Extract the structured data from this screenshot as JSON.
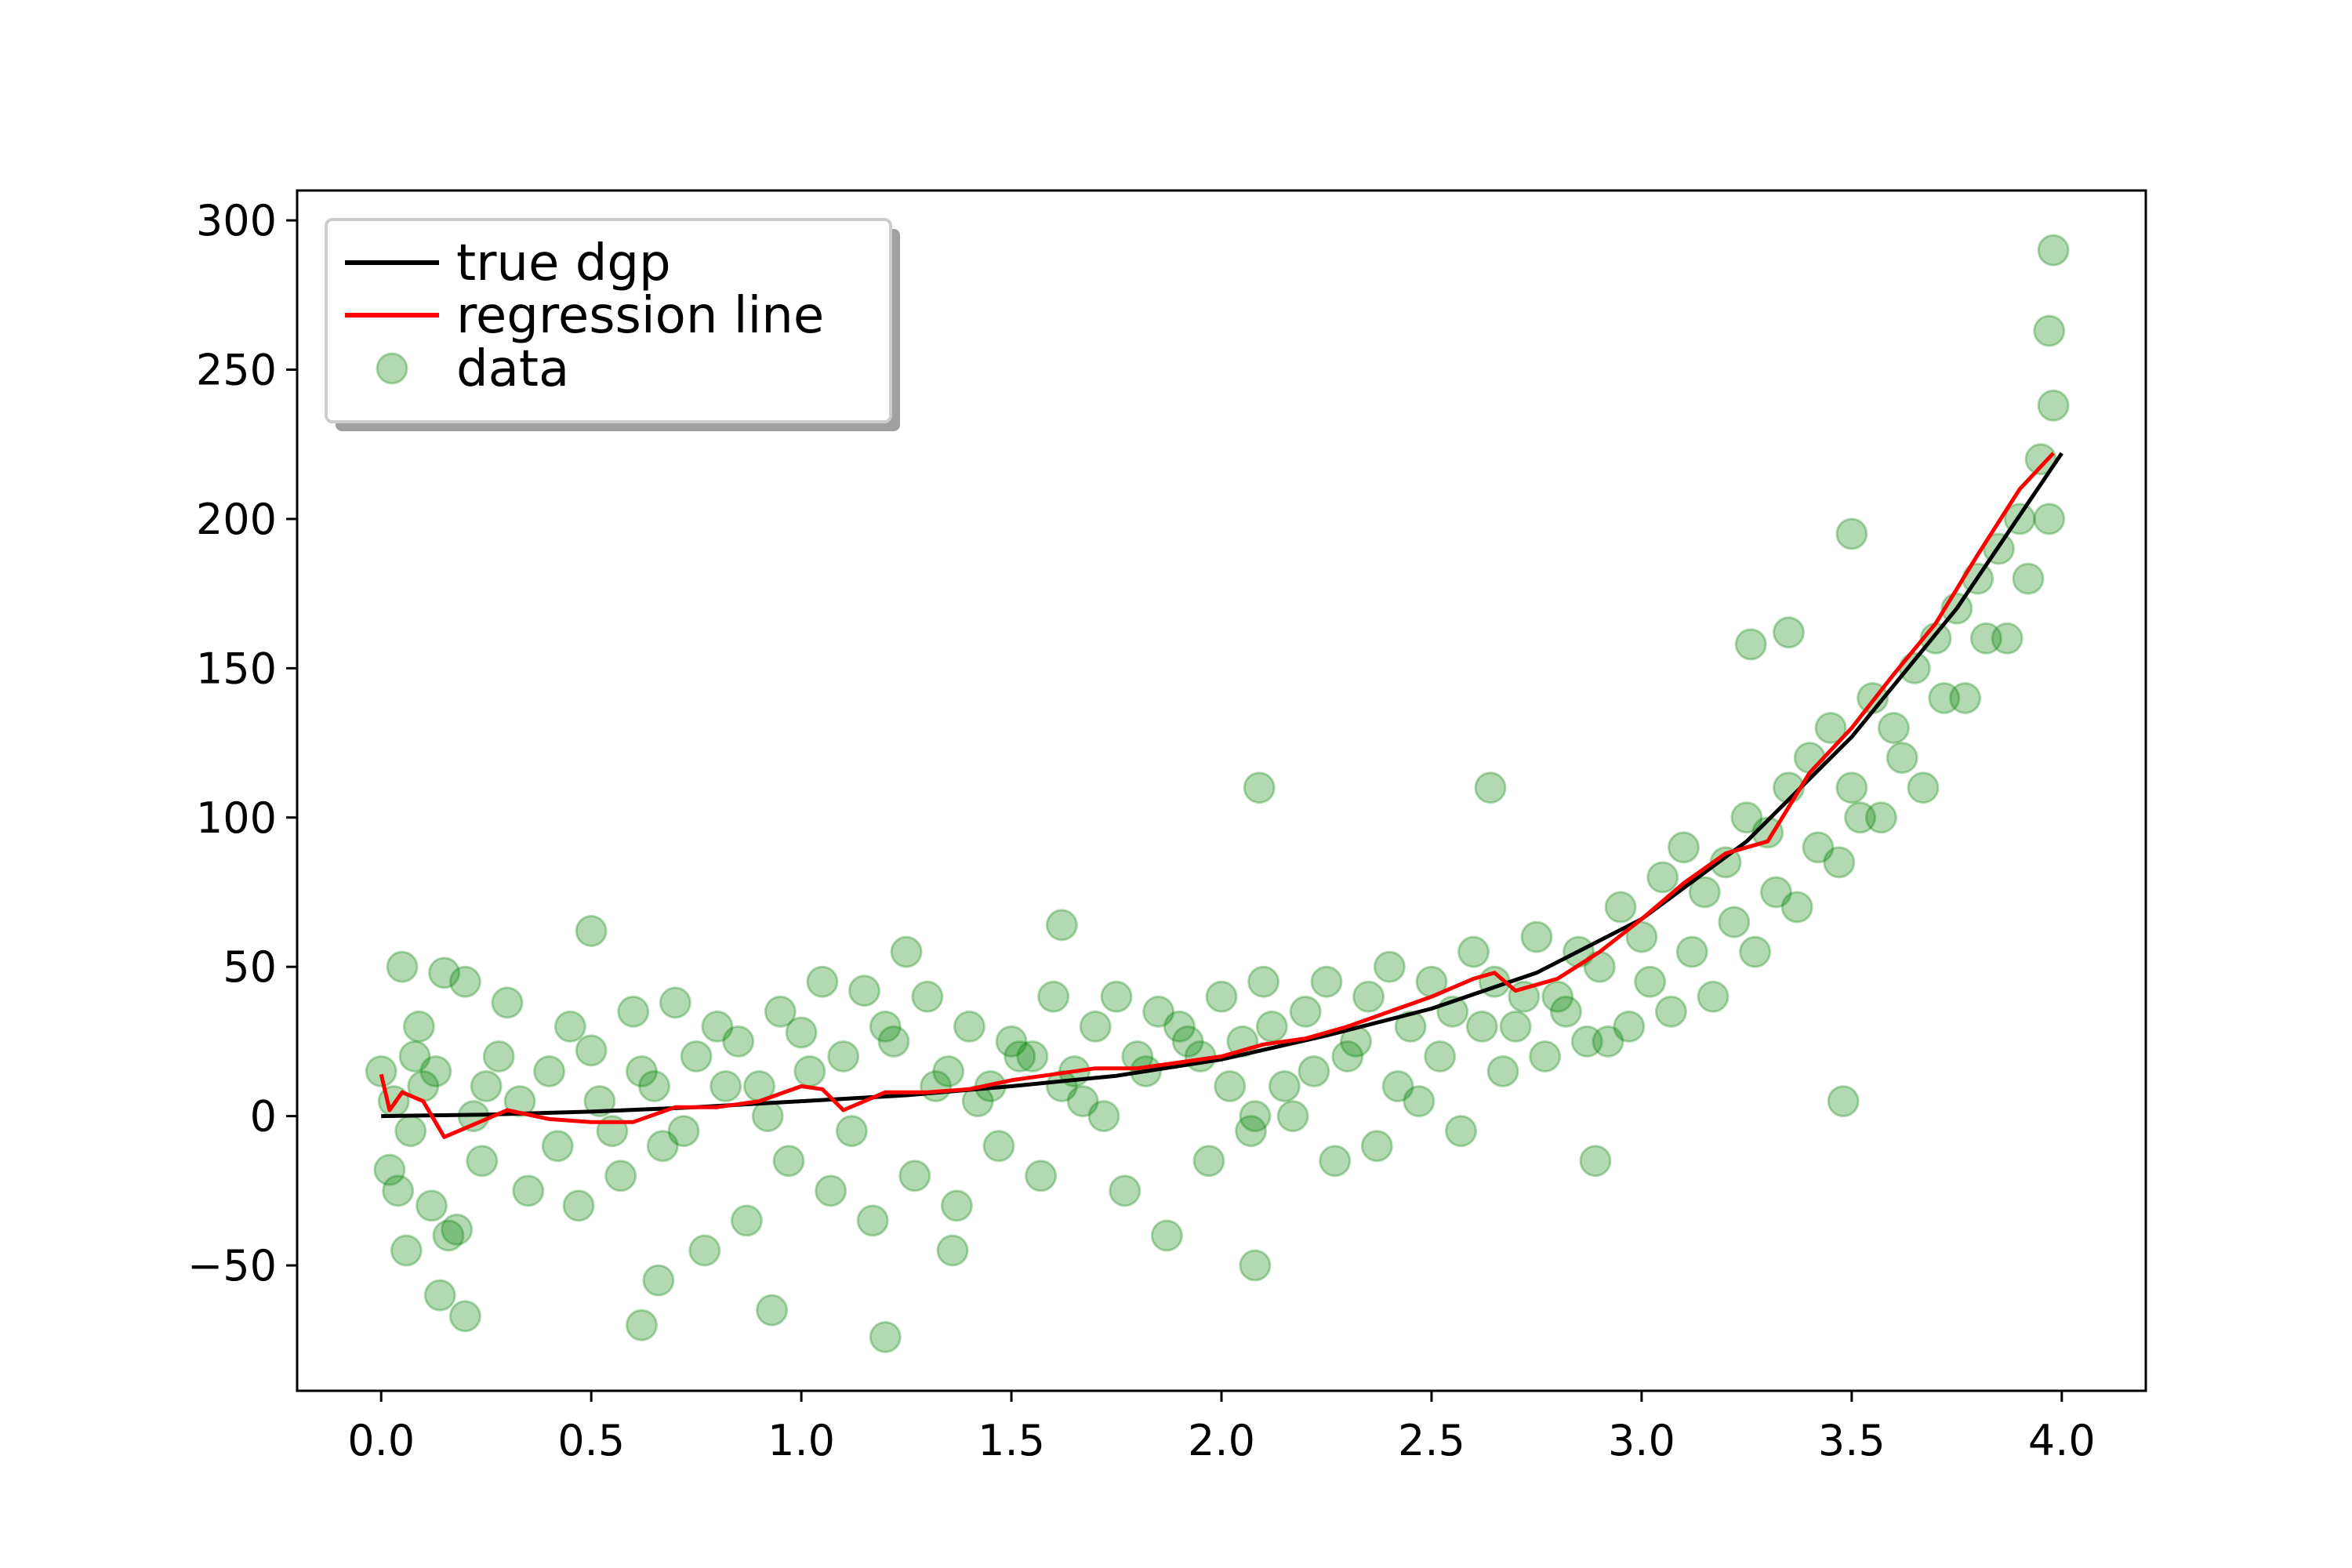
{
  "chart_data": {
    "type": "scatter",
    "xlim": [
      -0.2,
      4.2
    ],
    "ylim": [
      -92,
      310
    ],
    "xticks": [
      "0.0",
      "0.5",
      "1.0",
      "1.5",
      "2.0",
      "2.5",
      "3.0",
      "3.5",
      "4.0"
    ],
    "yticks": [
      "−50",
      "0",
      "50",
      "100",
      "150",
      "200",
      "250",
      "300"
    ],
    "legend_position": "upper-left",
    "legend": [
      "true dgp",
      "regression line",
      "data"
    ],
    "colors": {
      "true_dgp": "#000000",
      "regression": "#ff0000",
      "data": "#008000"
    },
    "true_dgp": {
      "x": [
        0,
        0.25,
        0.5,
        0.75,
        1.0,
        1.25,
        1.5,
        1.75,
        2.0,
        2.25,
        2.5,
        2.75,
        3.0,
        3.25,
        3.5,
        3.75,
        4.0
      ],
      "y": [
        0,
        0.5,
        1.5,
        3,
        5,
        7,
        10,
        13.5,
        19,
        27,
        36,
        48,
        66,
        92,
        127,
        170,
        222
      ]
    },
    "regression_line": {
      "x": [
        0,
        0.02,
        0.05,
        0.1,
        0.15,
        0.2,
        0.3,
        0.4,
        0.5,
        0.6,
        0.7,
        0.8,
        0.9,
        1.0,
        1.05,
        1.1,
        1.2,
        1.3,
        1.4,
        1.5,
        1.6,
        1.7,
        1.8,
        1.9,
        2.0,
        2.1,
        2.2,
        2.3,
        2.4,
        2.5,
        2.6,
        2.65,
        2.7,
        2.8,
        2.9,
        3.0,
        3.1,
        3.2,
        3.3,
        3.4,
        3.5,
        3.6,
        3.7,
        3.8,
        3.9,
        3.98
      ],
      "y": [
        14,
        2,
        8,
        5,
        -7,
        -4,
        2,
        -1,
        -2,
        -2,
        3,
        3,
        5,
        10,
        9,
        2,
        8,
        8,
        9,
        12,
        14,
        16,
        16,
        18,
        20,
        24,
        26,
        30,
        35,
        40,
        46,
        48,
        42,
        46,
        55,
        66,
        78,
        88,
        92,
        115,
        130,
        148,
        165,
        188,
        210,
        222
      ]
    },
    "data": {
      "x": [
        0.0,
        0.02,
        0.05,
        0.08,
        0.1,
        0.12,
        0.15,
        0.18,
        0.2,
        0.25,
        0.3,
        0.35,
        0.4,
        0.45,
        0.5,
        0.55,
        0.6,
        0.65,
        0.7,
        0.75,
        0.8,
        0.85,
        0.9,
        0.95,
        1.0,
        1.05,
        1.1,
        1.15,
        1.2,
        1.25,
        1.3,
        1.35,
        1.4,
        1.45,
        1.5,
        1.55,
        1.6,
        1.65,
        1.7,
        1.75,
        1.8,
        1.85,
        1.9,
        1.95,
        2.0,
        2.05,
        2.1,
        2.15,
        2.2,
        2.25,
        2.3,
        2.35,
        2.4,
        2.45,
        2.5,
        2.55,
        2.6,
        2.65,
        2.7,
        2.75,
        2.8,
        2.85,
        2.9,
        2.95,
        3.0,
        3.05,
        3.1,
        3.15,
        3.2,
        3.25,
        3.3,
        3.35,
        3.4,
        3.45,
        3.5,
        3.55,
        3.6,
        3.65,
        3.7,
        3.75,
        3.8,
        3.85,
        3.9,
        3.95,
        3.98,
        0.03,
        0.07,
        0.13,
        0.22,
        0.28,
        0.42,
        0.52,
        0.62,
        0.72,
        0.82,
        0.92,
        1.02,
        1.12,
        1.22,
        1.32,
        1.42,
        1.52,
        1.62,
        1.72,
        1.82,
        1.92,
        2.02,
        2.08,
        2.12,
        2.22,
        2.32,
        2.42,
        2.52,
        2.62,
        2.72,
        2.82,
        2.92,
        3.02,
        3.12,
        3.22,
        3.32,
        3.42,
        3.52,
        3.62,
        3.72,
        3.82,
        3.92,
        0.04,
        0.09,
        0.16,
        0.24,
        0.33,
        0.47,
        0.57,
        0.67,
        0.77,
        0.87,
        0.97,
        1.07,
        1.17,
        1.27,
        1.37,
        1.47,
        1.57,
        1.67,
        1.77,
        1.87,
        1.97,
        2.07,
        2.17,
        2.27,
        2.37,
        2.47,
        2.57,
        2.67,
        2.77,
        2.87,
        2.97,
        3.07,
        3.17,
        3.27,
        3.37,
        3.47,
        3.57,
        3.67,
        3.77,
        3.87,
        3.97,
        0.06,
        0.14,
        0.2,
        0.62,
        0.66,
        0.93,
        1.2,
        1.36,
        2.08,
        2.89,
        3.48,
        3.98,
        3.97,
        2.09,
        2.64,
        3.26,
        1.62,
        0.5,
        3.35,
        3.5
      ],
      "y": [
        15,
        -18,
        50,
        20,
        10,
        -30,
        48,
        -38,
        45,
        10,
        38,
        -25,
        15,
        30,
        22,
        -5,
        35,
        10,
        38,
        20,
        30,
        25,
        10,
        35,
        28,
        45,
        20,
        42,
        30,
        55,
        40,
        15,
        30,
        10,
        25,
        20,
        40,
        15,
        30,
        40,
        20,
        35,
        30,
        20,
        40,
        25,
        45,
        10,
        35,
        45,
        20,
        40,
        50,
        30,
        45,
        35,
        55,
        45,
        30,
        60,
        40,
        55,
        50,
        70,
        60,
        80,
        90,
        75,
        85,
        100,
        95,
        110,
        120,
        130,
        110,
        140,
        130,
        150,
        160,
        170,
        180,
        190,
        200,
        220,
        238,
        5,
        -5,
        15,
        0,
        20,
        -10,
        5,
        15,
        -5,
        10,
        0,
        15,
        -5,
        25,
        10,
        5,
        20,
        10,
        0,
        15,
        25,
        10,
        0,
        30,
        15,
        25,
        10,
        20,
        30,
        40,
        35,
        25,
        45,
        55,
        65,
        75,
        90,
        100,
        120,
        140,
        160,
        180,
        -25,
        30,
        -40,
        -15,
        5,
        -30,
        -20,
        -10,
        -45,
        -35,
        -15,
        -25,
        -35,
        -20,
        -30,
        -10,
        -20,
        5,
        -25,
        -40,
        -15,
        -5,
        0,
        -15,
        -10,
        5,
        -5,
        15,
        20,
        25,
        30,
        35,
        40,
        55,
        70,
        85,
        100,
        110,
        140,
        160,
        200,
        -45,
        -60,
        -67,
        -70,
        -55,
        -65,
        -74,
        -45,
        -50,
        -15,
        5,
        290,
        263,
        110,
        110,
        158,
        64,
        62,
        162,
        195
      ]
    }
  }
}
